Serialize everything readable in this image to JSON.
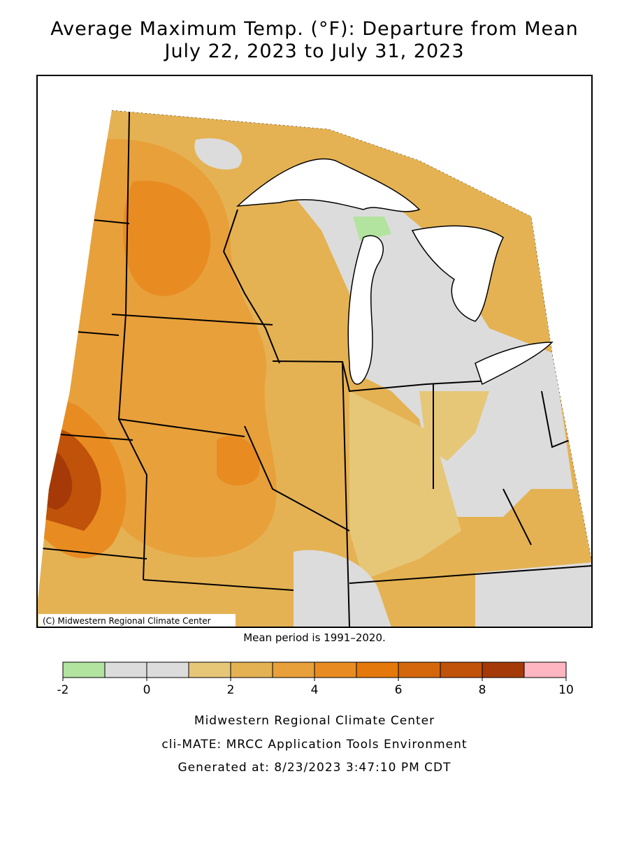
{
  "header": {
    "title_line1": "Average Maximum Temp. (°F): Departure from Mean",
    "title_line2": "July 22, 2023 to July 31, 2023"
  },
  "map": {
    "credit": "(C) Midwestern Regional Climate Center",
    "mean_period": "Mean period is 1991–2020."
  },
  "legend": {
    "bins": [
      -2,
      -1,
      0,
      1,
      2,
      3,
      4,
      5,
      6,
      7,
      8,
      9,
      10
    ],
    "colors": [
      "#b2e39f",
      "#dcdcdc",
      "#dcdcdc",
      "#e6c778",
      "#e5b253",
      "#e8a03a",
      "#e88c22",
      "#e5780a",
      "#d4670b",
      "#c0520a",
      "#a53a08",
      "#ffb6c1"
    ],
    "ticks": [
      -2,
      0,
      2,
      4,
      6,
      8,
      10
    ]
  },
  "footer": {
    "line1": "Midwestern Regional Climate Center",
    "line2": "cli-MATE: MRCC Application Tools Environment",
    "line3": "Generated at: 8/23/2023 3:47:10 PM CDT"
  }
}
